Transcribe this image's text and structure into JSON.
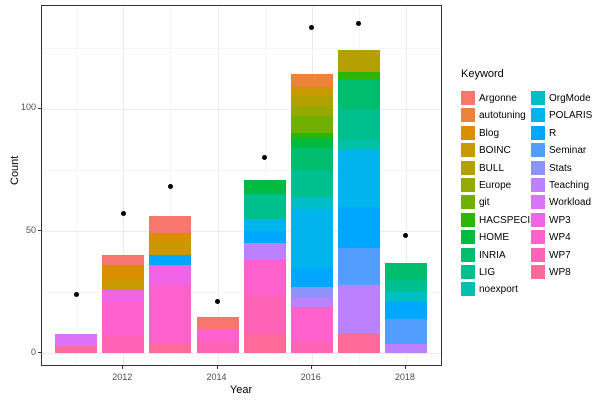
{
  "chart_data": {
    "type": "bar",
    "stacked": true,
    "title": "",
    "xlabel": "Year",
    "ylabel": "Count",
    "legend_title": "Keyword",
    "legend_position": "right",
    "grid": true,
    "x_ticks": [
      {
        "label": "2012",
        "year": 2012
      },
      {
        "label": "2014",
        "year": 2014
      },
      {
        "label": "2016",
        "year": 2016
      },
      {
        "label": "2018",
        "year": 2018
      }
    ],
    "y_ticks": [
      {
        "label": "0",
        "value": 0
      },
      {
        "label": "50",
        "value": 50
      },
      {
        "label": "100",
        "value": 100
      }
    ],
    "minor_x_years": [
      2011,
      2013,
      2015,
      2017
    ],
    "minor_y_values": [
      25,
      75,
      125
    ],
    "xlim": [
      2010.4,
      2018.6
    ],
    "ylim": [
      -7,
      144
    ],
    "keywords": [
      {
        "name": "Argonne",
        "color": "#F8766D"
      },
      {
        "name": "autotuning",
        "color": "#EC823C"
      },
      {
        "name": "Blog",
        "color": "#DB8E00"
      },
      {
        "name": "BOINC",
        "color": "#C89900"
      },
      {
        "name": "BULL",
        "color": "#B2A100"
      },
      {
        "name": "Europe",
        "color": "#95A900"
      },
      {
        "name": "git",
        "color": "#6FB000"
      },
      {
        "name": "HACSPECIS",
        "color": "#2CB600"
      },
      {
        "name": "HOME",
        "color": "#00BA42"
      },
      {
        "name": "INRIA",
        "color": "#00BD6D"
      },
      {
        "name": "LIG",
        "color": "#00BF8F"
      },
      {
        "name": "noexport",
        "color": "#00C0AC"
      },
      {
        "name": "OrgMode",
        "color": "#00BEC6"
      },
      {
        "name": "POLARIS",
        "color": "#00B5EC"
      },
      {
        "name": "R",
        "color": "#00A7FF"
      },
      {
        "name": "Seminar",
        "color": "#529EFF"
      },
      {
        "name": "Stats",
        "color": "#8C93FB"
      },
      {
        "name": "Teaching",
        "color": "#BC81FF"
      },
      {
        "name": "Workload",
        "color": "#DC71FA"
      },
      {
        "name": "WP3",
        "color": "#F163E6"
      },
      {
        "name": "WP4",
        "color": "#FF61CC"
      },
      {
        "name": "WP7",
        "color": "#FF63B6"
      },
      {
        "name": "WP8",
        "color": "#FF6A9A"
      }
    ],
    "bars": [
      {
        "year": 2011,
        "total": 8,
        "segments": [
          [
            "WP8",
            3
          ],
          [
            "Workload",
            5
          ]
        ]
      },
      {
        "year": 2012,
        "total": 40,
        "segments": [
          [
            "WP7",
            7
          ],
          [
            "WP4",
            14
          ],
          [
            "WP3",
            5
          ],
          [
            "BOINC",
            4
          ],
          [
            "Blog",
            6
          ],
          [
            "Argonne",
            4
          ]
        ]
      },
      {
        "year": 2013,
        "total": 56,
        "segments": [
          [
            "WP8",
            4
          ],
          [
            "WP4",
            24
          ],
          [
            "WP3",
            8
          ],
          [
            "R",
            4
          ],
          [
            "BOINC",
            6
          ],
          [
            "Blog",
            3
          ],
          [
            "Argonne",
            7
          ]
        ]
      },
      {
        "year": 2014,
        "total": 15,
        "segments": [
          [
            "WP7",
            5
          ],
          [
            "WP4",
            5
          ],
          [
            "Argonne",
            5
          ]
        ]
      },
      {
        "year": 2015,
        "total": 71,
        "segments": [
          [
            "WP8",
            8
          ],
          [
            "WP7",
            16
          ],
          [
            "WP4",
            14
          ],
          [
            "Teaching",
            7
          ],
          [
            "R",
            5
          ],
          [
            "POLARIS",
            5
          ],
          [
            "LIG",
            10
          ],
          [
            "HOME",
            6
          ]
        ]
      },
      {
        "year": 2016,
        "total": 114,
        "segments": [
          [
            "WP7",
            5
          ],
          [
            "WP4",
            14
          ],
          [
            "Teaching",
            4
          ],
          [
            "Stats",
            4
          ],
          [
            "R",
            8
          ],
          [
            "POLARIS",
            24
          ],
          [
            "OrgMode",
            5
          ],
          [
            "LIG",
            11
          ],
          [
            "INRIA",
            9
          ],
          [
            "HOME",
            4
          ],
          [
            "HACSPECIS",
            2
          ],
          [
            "git",
            7
          ],
          [
            "Europe",
            4
          ],
          [
            "BULL",
            4
          ],
          [
            "BOINC",
            4
          ],
          [
            "autotuning",
            5
          ]
        ]
      },
      {
        "year": 2017,
        "total": 124,
        "segments": [
          [
            "WP8",
            8
          ],
          [
            "Teaching",
            20
          ],
          [
            "Seminar",
            15
          ],
          [
            "R",
            17
          ],
          [
            "POLARIS",
            23
          ],
          [
            "noexport",
            4
          ],
          [
            "LIG",
            13
          ],
          [
            "INRIA",
            12
          ],
          [
            "HACSPECIS",
            3
          ],
          [
            "BULL",
            9
          ]
        ]
      },
      {
        "year": 2018,
        "total": 37,
        "segments": [
          [
            "Teaching",
            4
          ],
          [
            "Seminar",
            10
          ],
          [
            "R",
            7
          ],
          [
            "OrgMode",
            4
          ],
          [
            "LIG",
            5
          ],
          [
            "INRIA",
            7
          ]
        ]
      }
    ],
    "points": [
      {
        "year": 2011,
        "value": 24
      },
      {
        "year": 2012,
        "value": 57
      },
      {
        "year": 2013,
        "value": 68
      },
      {
        "year": 2014,
        "value": 21
      },
      {
        "year": 2015,
        "value": 80
      },
      {
        "year": 2016,
        "value": 133
      },
      {
        "year": 2017,
        "value": 135
      },
      {
        "year": 2018,
        "value": 48
      }
    ]
  }
}
